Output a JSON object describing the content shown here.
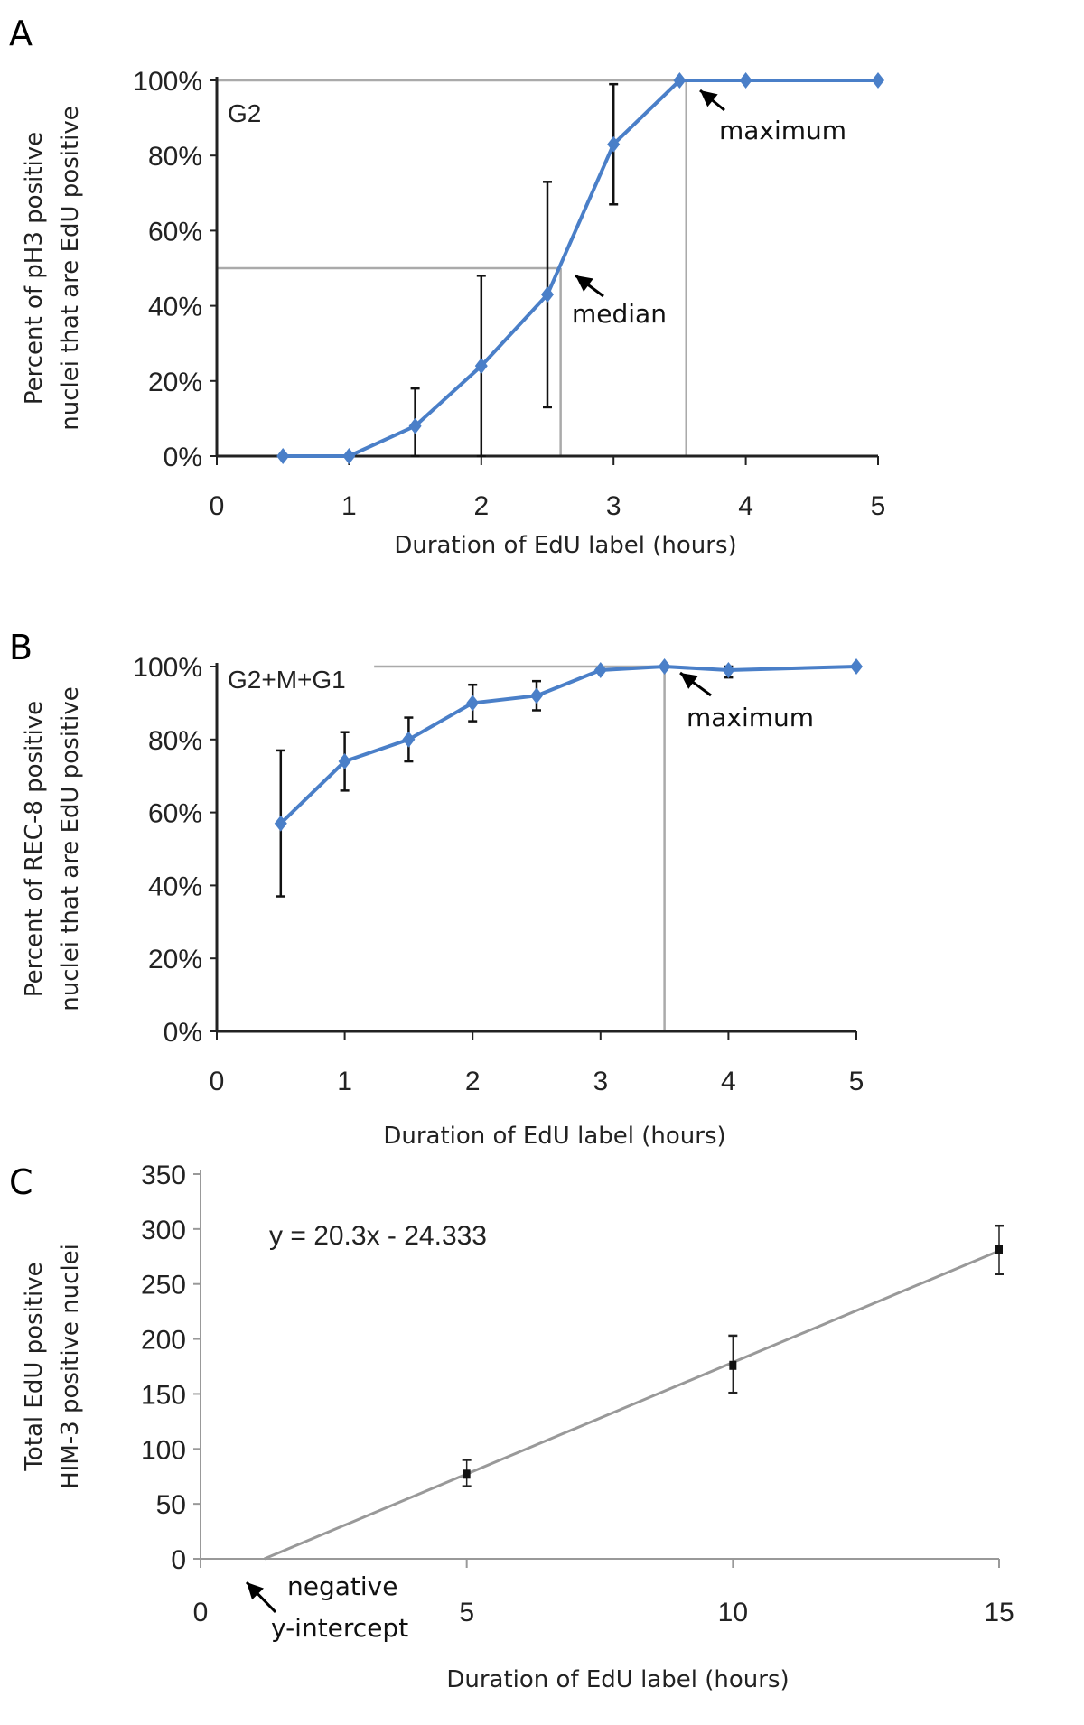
{
  "chart_data": [
    {
      "type": "line",
      "panel_label": "A",
      "inset_label": "G2",
      "xlabel": "Duration of EdU label (hours)",
      "ylabel": [
        "Percent of pH3 positive",
        "nuclei that are EdU positive"
      ],
      "xlim": [
        0,
        5
      ],
      "ylim": [
        0,
        100
      ],
      "xticks": [
        "0",
        "1",
        "2",
        "3",
        "4",
        "5"
      ],
      "yticks": [
        "0%",
        "20%",
        "40%",
        "60%",
        "80%",
        "100%"
      ],
      "color": "#4a7fc8",
      "x": [
        0.5,
        1,
        1.5,
        2,
        2.5,
        3,
        3.5,
        4,
        5
      ],
      "y": [
        0,
        0,
        8,
        24,
        43,
        83,
        100,
        100,
        100
      ],
      "err_high": [
        null,
        null,
        18,
        48,
        73,
        99,
        null,
        null,
        null
      ],
      "err_low": [
        null,
        null,
        0,
        0,
        13,
        67,
        null,
        null,
        null
      ],
      "reference_lines": [
        {
          "label": "median",
          "y": 50,
          "x": 2.6
        },
        {
          "label": "maximum",
          "y": 100,
          "x": 3.55
        }
      ],
      "annotations": [
        "maximum",
        "median"
      ]
    },
    {
      "type": "line",
      "panel_label": "B",
      "inset_label": "G2+M+G1",
      "xlabel": "Duration of EdU label (hours)",
      "ylabel": [
        "Percent of REC-8 positive",
        "nuclei that are EdU positive"
      ],
      "xlim": [
        0,
        5
      ],
      "ylim": [
        0,
        100
      ],
      "xticks": [
        "0",
        "1",
        "2",
        "3",
        "4",
        "5"
      ],
      "yticks": [
        "0%",
        "20%",
        "40%",
        "60%",
        "80%",
        "100%"
      ],
      "color": "#4a7fc8",
      "x": [
        0.5,
        1,
        1.5,
        2,
        2.5,
        3,
        3.5,
        4,
        5
      ],
      "y": [
        57,
        74,
        80,
        90,
        92,
        99,
        100,
        99,
        100
      ],
      "err_high": [
        77,
        82,
        86,
        95,
        96,
        null,
        null,
        100,
        null
      ],
      "err_low": [
        37,
        66,
        74,
        85,
        88,
        null,
        null,
        97,
        null
      ],
      "reference_lines": [
        {
          "label": "maximum",
          "y": 100,
          "x": 3.5
        }
      ],
      "annotations": [
        "maximum"
      ]
    },
    {
      "type": "scatter",
      "panel_label": "C",
      "equation": "y = 20.3x - 24.333",
      "xlabel": "Duration of EdU label (hours)",
      "ylabel": [
        "Total EdU positive",
        "HIM-3 positive nuclei"
      ],
      "xlim": [
        0,
        15
      ],
      "ylim": [
        0,
        350
      ],
      "xticks": [
        "0",
        "5",
        "10",
        "15"
      ],
      "yticks": [
        "0",
        "50",
        "100",
        "150",
        "200",
        "250",
        "300",
        "350"
      ],
      "x": [
        5,
        10,
        15
      ],
      "y": [
        77,
        176,
        281
      ],
      "err_high": [
        90,
        203,
        303
      ],
      "err_low": [
        66,
        151,
        259
      ],
      "trendline": {
        "slope": 20.3,
        "intercept": -24.333
      },
      "annotations": [
        "negative",
        "y-intercept"
      ]
    }
  ]
}
